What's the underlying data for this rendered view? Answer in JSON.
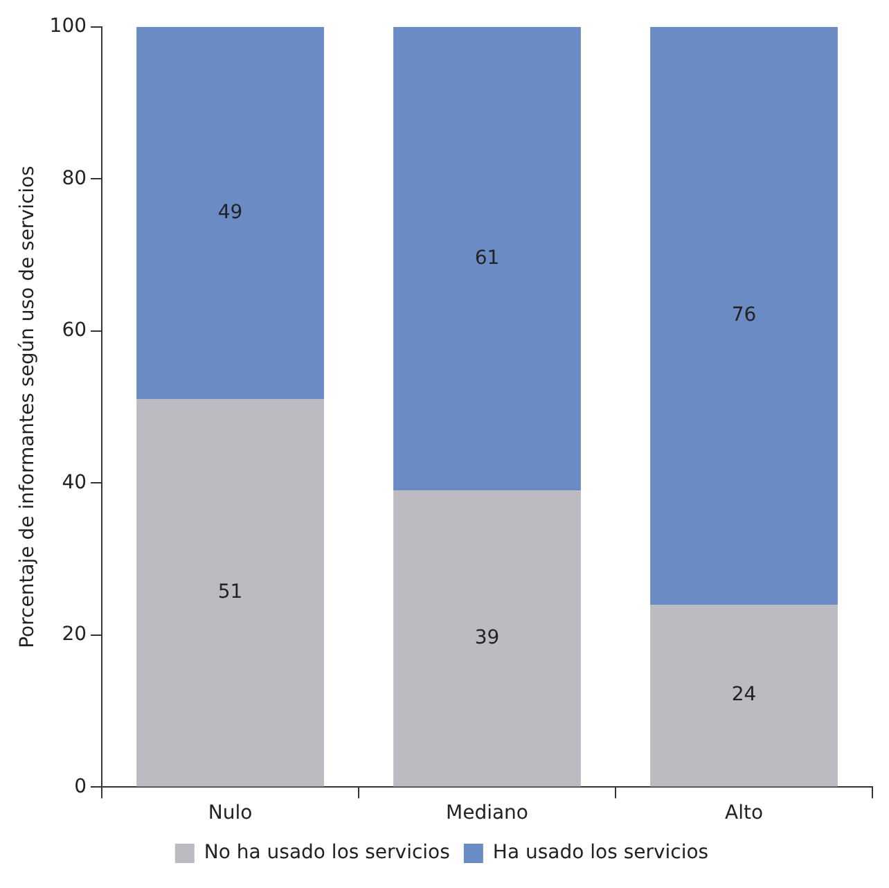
{
  "chart_data": {
    "type": "bar",
    "stacked": true,
    "ylabel": "Porcentaje de informantes según uso de servicios",
    "categories": [
      "Nulo",
      "Mediano",
      "Alto"
    ],
    "series": [
      {
        "name": "No ha usado los servicios",
        "color": "#bcbbc1",
        "values": [
          51,
          39,
          24
        ]
      },
      {
        "name": "Ha usado los servicios",
        "color": "#6a8bc3",
        "values": [
          49,
          61,
          76
        ]
      }
    ],
    "ylim": [
      0,
      100
    ],
    "yticks": [
      0,
      20,
      40,
      60,
      80,
      100
    ],
    "grid": false,
    "legend": "bottom",
    "data_labels": true
  }
}
